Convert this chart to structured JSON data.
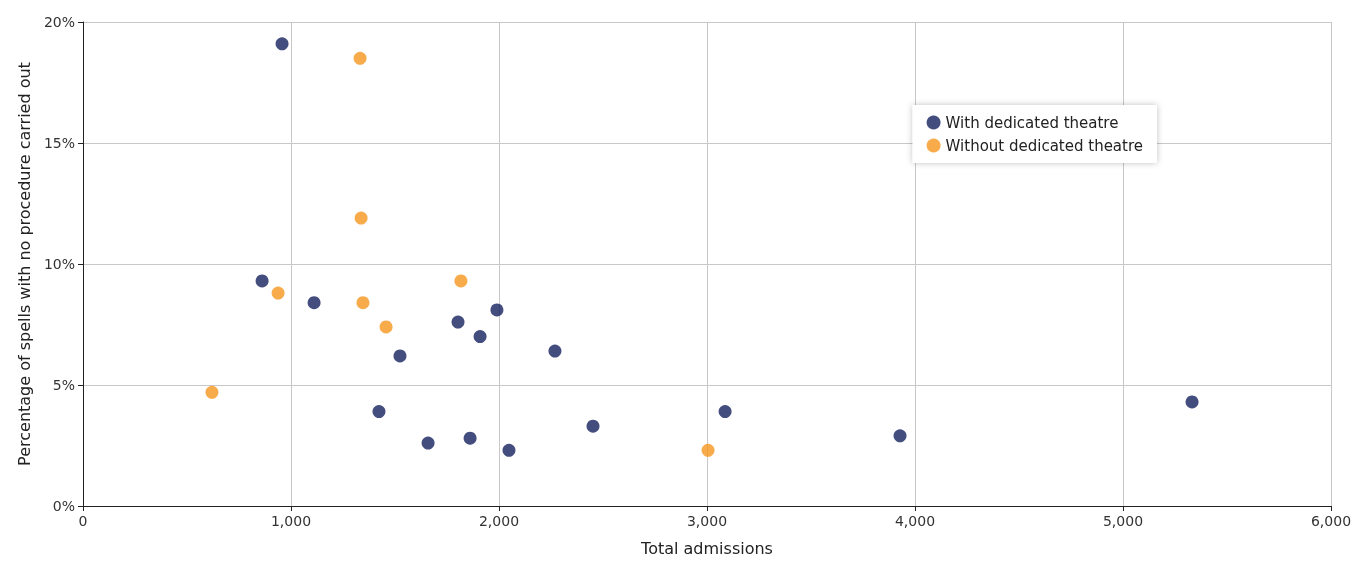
{
  "chart_data": {
    "type": "scatter",
    "xlabel": "Total admissions",
    "ylabel": "Percentage of spells with no procedure carried out",
    "xlim": [
      0,
      6000
    ],
    "xticks": [
      0,
      {
        "value": 1000,
        "label": "1,000"
      },
      {
        "value": 2000,
        "label": "2,000"
      },
      {
        "value": 3000,
        "label": "3,000"
      },
      {
        "value": 4000,
        "label": "4,000"
      },
      {
        "value": 5000,
        "label": "5,000"
      },
      {
        "value": 6000,
        "label": "6,000"
      }
    ],
    "ylim": [
      0,
      20
    ],
    "yticks": [
      {
        "value": 0,
        "label": "0%"
      },
      {
        "value": 5,
        "label": "5%"
      },
      {
        "value": 10,
        "label": "10%"
      },
      {
        "value": 15,
        "label": "15%"
      },
      {
        "value": 20,
        "label": "20%"
      }
    ],
    "grid": true,
    "legend": "top right",
    "marker": "circle",
    "series": [
      {
        "name": "With dedicated theatre",
        "color": "#14215e",
        "x": [
          957,
          861,
          1111,
          1524,
          1423,
          1659,
          1803,
          1861,
          1909,
          1990,
          2048,
          2269,
          2452,
          3087,
          3928,
          5332
        ],
        "values": [
          19.1,
          9.3,
          8.4,
          6.2,
          3.9,
          2.6,
          7.6,
          2.8,
          7.0,
          8.1,
          2.3,
          6.4,
          3.3,
          3.9,
          2.9,
          4.3
        ]
      },
      {
        "name": "Without dedicated theatre",
        "color": "#f5961e",
        "x": [
          1332,
          1337,
          938,
          1346,
          1457,
          1817,
          620,
          3005
        ],
        "values": [
          18.5,
          11.9,
          8.8,
          8.4,
          7.4,
          9.3,
          4.7,
          2.3
        ]
      }
    ]
  }
}
